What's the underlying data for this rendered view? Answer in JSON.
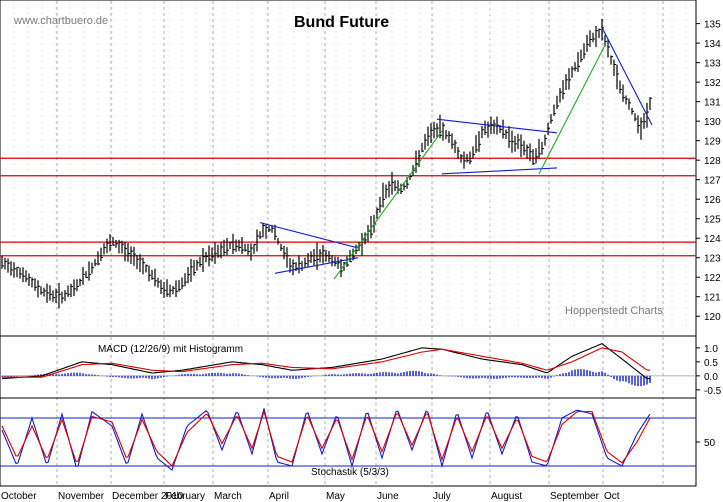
{
  "chart_data": [
    {
      "type": "line",
      "subtype": "ohlc-bar",
      "title": "Bund Future",
      "source_label": "www.chartbuero.de",
      "watermark": "Hoppenstedt Charts",
      "ylim": [
        119.5,
        135.8
      ],
      "y_ticks": [
        120,
        121,
        122,
        123,
        124,
        125,
        126,
        127,
        128,
        129,
        130,
        131,
        132,
        133,
        134,
        135
      ],
      "x_months": [
        "October",
        "November",
        "December 2010",
        "February",
        "March",
        "April",
        "May",
        "June",
        "July",
        "August",
        "September",
        "Oct"
      ],
      "price_path": [
        [
          0,
          122.7
        ],
        [
          10,
          122.5
        ],
        [
          20,
          122.2
        ],
        [
          30,
          121.7
        ],
        [
          40,
          121.3
        ],
        [
          50,
          121.1
        ],
        [
          60,
          121.0
        ],
        [
          70,
          121.3
        ],
        [
          80,
          121.9
        ],
        [
          90,
          122.5
        ],
        [
          100,
          123.3
        ],
        [
          110,
          123.8
        ],
        [
          120,
          123.5
        ],
        [
          130,
          123.1
        ],
        [
          140,
          122.7
        ],
        [
          150,
          122.1
        ],
        [
          160,
          121.4
        ],
        [
          170,
          121.3
        ],
        [
          180,
          121.7
        ],
        [
          190,
          122.3
        ],
        [
          200,
          122.9
        ],
        [
          210,
          123.1
        ],
        [
          220,
          123.4
        ],
        [
          230,
          123.7
        ],
        [
          240,
          123.6
        ],
        [
          250,
          123.3
        ],
        [
          260,
          124.4
        ],
        [
          270,
          124.5
        ],
        [
          280,
          123.4
        ],
        [
          290,
          122.5
        ],
        [
          300,
          122.6
        ],
        [
          310,
          123.0
        ],
        [
          320,
          123.2
        ],
        [
          330,
          122.9
        ],
        [
          340,
          122.5
        ],
        [
          350,
          123.1
        ],
        [
          360,
          123.8
        ],
        [
          370,
          124.5
        ],
        [
          380,
          126.1
        ],
        [
          390,
          126.8
        ],
        [
          400,
          126.5
        ],
        [
          410,
          127.3
        ],
        [
          420,
          128.6
        ],
        [
          430,
          129.5
        ],
        [
          440,
          129.6
        ],
        [
          450,
          129.0
        ],
        [
          460,
          128.0
        ],
        [
          470,
          128.2
        ],
        [
          480,
          129.5
        ],
        [
          490,
          129.7
        ],
        [
          500,
          129.6
        ],
        [
          510,
          129.0
        ],
        [
          520,
          128.8
        ],
        [
          530,
          128.1
        ],
        [
          540,
          128.6
        ],
        [
          550,
          130.3
        ],
        [
          560,
          131.5
        ],
        [
          570,
          132.5
        ],
        [
          580,
          133.4
        ],
        [
          590,
          134.3
        ],
        [
          600,
          134.6
        ],
        [
          610,
          133.0
        ],
        [
          620,
          131.5
        ],
        [
          630,
          130.5
        ],
        [
          640,
          129.6
        ],
        [
          648,
          130.9
        ]
      ],
      "horizontal_lines": [
        {
          "color": "#dd0000",
          "y": 123.8
        },
        {
          "color": "#dd0000",
          "y": 123.1
        },
        {
          "color": "#dd0000",
          "y": 128.1
        },
        {
          "color": "#dd0000",
          "y": 127.2
        }
      ],
      "trendlines": [
        {
          "color": "#1020c8",
          "from": [
            258,
            124.8
          ],
          "to": [
            356,
            123.5
          ]
        },
        {
          "color": "#1020c8",
          "from": [
            273,
            122.2
          ],
          "to": [
            356,
            123.0
          ]
        },
        {
          "color": "#1020c8",
          "from": [
            435,
            130.1
          ],
          "to": [
            555,
            129.4
          ]
        },
        {
          "color": "#1020c8",
          "from": [
            440,
            127.3
          ],
          "to": [
            555,
            127.6
          ]
        },
        {
          "color": "#1020c8",
          "from": [
            600,
            134.8
          ],
          "to": [
            650,
            129.8
          ]
        },
        {
          "color": "#22aa22",
          "from": [
            332,
            121.9
          ],
          "to": [
            440,
            129.5
          ]
        },
        {
          "color": "#22aa22",
          "from": [
            537,
            127.3
          ],
          "to": [
            603,
            133.9
          ]
        }
      ]
    },
    {
      "type": "line",
      "title": "MACD (12/26/9) mit Histogramm",
      "ylim": [
        -0.72,
        1.28
      ],
      "y_ticks": [
        1.0,
        0.5,
        0.0,
        -0.5
      ],
      "series": [
        {
          "color": "#000000",
          "points": [
            [
              0,
              -0.1
            ],
            [
              40,
              0.0
            ],
            [
              80,
              0.5
            ],
            [
              110,
              0.4
            ],
            [
              150,
              0.1
            ],
            [
              180,
              0.2
            ],
            [
              230,
              0.5
            ],
            [
              260,
              0.4
            ],
            [
              290,
              0.2
            ],
            [
              330,
              0.3
            ],
            [
              380,
              0.6
            ],
            [
              420,
              1.0
            ],
            [
              440,
              0.95
            ],
            [
              480,
              0.6
            ],
            [
              520,
              0.4
            ],
            [
              545,
              0.1
            ],
            [
              570,
              0.7
            ],
            [
              600,
              1.15
            ],
            [
              620,
              0.6
            ],
            [
              645,
              -0.1
            ]
          ]
        },
        {
          "color": "#dd0000",
          "points": [
            [
              0,
              -0.05
            ],
            [
              40,
              -0.05
            ],
            [
              80,
              0.4
            ],
            [
              110,
              0.45
            ],
            [
              150,
              0.2
            ],
            [
              180,
              0.15
            ],
            [
              230,
              0.4
            ],
            [
              260,
              0.45
            ],
            [
              290,
              0.3
            ],
            [
              330,
              0.25
            ],
            [
              380,
              0.5
            ],
            [
              420,
              0.85
            ],
            [
              440,
              0.95
            ],
            [
              480,
              0.7
            ],
            [
              520,
              0.45
            ],
            [
              545,
              0.2
            ],
            [
              570,
              0.5
            ],
            [
              600,
              1.0
            ],
            [
              620,
              0.85
            ],
            [
              645,
              0.2
            ]
          ]
        }
      ],
      "histogram_color": "#1020c8",
      "histogram_points": [
        [
          0,
          -0.05
        ],
        [
          40,
          0.05
        ],
        [
          80,
          0.1
        ],
        [
          110,
          -0.05
        ],
        [
          150,
          -0.1
        ],
        [
          180,
          0.05
        ],
        [
          230,
          0.1
        ],
        [
          260,
          -0.05
        ],
        [
          290,
          -0.1
        ],
        [
          330,
          0.05
        ],
        [
          380,
          0.1
        ],
        [
          420,
          0.15
        ],
        [
          440,
          0.0
        ],
        [
          480,
          -0.1
        ],
        [
          520,
          -0.05
        ],
        [
          545,
          -0.1
        ],
        [
          570,
          0.2
        ],
        [
          600,
          0.15
        ],
        [
          620,
          -0.25
        ],
        [
          645,
          -0.3
        ]
      ]
    },
    {
      "type": "line",
      "title": "Stochastik (5/3/3)",
      "ylim": [
        0,
        100
      ],
      "y_ticks": [
        50
      ],
      "reference_lines": [
        80,
        20
      ],
      "series": [
        {
          "color": "#1020c8",
          "points": [
            [
              0,
              65
            ],
            [
              15,
              20
            ],
            [
              30,
              80
            ],
            [
              45,
              20
            ],
            [
              60,
              85
            ],
            [
              75,
              15
            ],
            [
              90,
              88
            ],
            [
              110,
              70
            ],
            [
              125,
              20
            ],
            [
              140,
              85
            ],
            [
              155,
              30
            ],
            [
              170,
              15
            ],
            [
              185,
              70
            ],
            [
              205,
              90
            ],
            [
              220,
              40
            ],
            [
              235,
              90
            ],
            [
              250,
              35
            ],
            [
              262,
              92
            ],
            [
              275,
              25
            ],
            [
              290,
              20
            ],
            [
              305,
              90
            ],
            [
              320,
              35
            ],
            [
              335,
              85
            ],
            [
              350,
              20
            ],
            [
              365,
              90
            ],
            [
              380,
              30
            ],
            [
              395,
              92
            ],
            [
              410,
              40
            ],
            [
              425,
              92
            ],
            [
              440,
              20
            ],
            [
              455,
              88
            ],
            [
              470,
              30
            ],
            [
              485,
              90
            ],
            [
              500,
              35
            ],
            [
              515,
              85
            ],
            [
              530,
              25
            ],
            [
              545,
              20
            ],
            [
              560,
              80
            ],
            [
              575,
              90
            ],
            [
              590,
              85
            ],
            [
              605,
              30
            ],
            [
              620,
              20
            ],
            [
              635,
              60
            ],
            [
              648,
              85
            ]
          ]
        },
        {
          "color": "#dd0000",
          "points": [
            [
              0,
              70
            ],
            [
              15,
              30
            ],
            [
              30,
              70
            ],
            [
              45,
              28
            ],
            [
              60,
              78
            ],
            [
              75,
              22
            ],
            [
              90,
              82
            ],
            [
              110,
              75
            ],
            [
              125,
              28
            ],
            [
              140,
              78
            ],
            [
              155,
              38
            ],
            [
              170,
              20
            ],
            [
              185,
              62
            ],
            [
              205,
              86
            ],
            [
              220,
              48
            ],
            [
              235,
              84
            ],
            [
              250,
              42
            ],
            [
              262,
              88
            ],
            [
              275,
              32
            ],
            [
              290,
              25
            ],
            [
              305,
              84
            ],
            [
              320,
              42
            ],
            [
              335,
              80
            ],
            [
              350,
              28
            ],
            [
              365,
              84
            ],
            [
              380,
              38
            ],
            [
              395,
              88
            ],
            [
              410,
              46
            ],
            [
              425,
              88
            ],
            [
              440,
              28
            ],
            [
              455,
              82
            ],
            [
              470,
              38
            ],
            [
              485,
              84
            ],
            [
              500,
              42
            ],
            [
              515,
              80
            ],
            [
              530,
              32
            ],
            [
              545,
              25
            ],
            [
              560,
              72
            ],
            [
              575,
              88
            ],
            [
              590,
              88
            ],
            [
              605,
              38
            ],
            [
              620,
              24
            ],
            [
              635,
              50
            ],
            [
              648,
              80
            ]
          ]
        }
      ]
    }
  ]
}
